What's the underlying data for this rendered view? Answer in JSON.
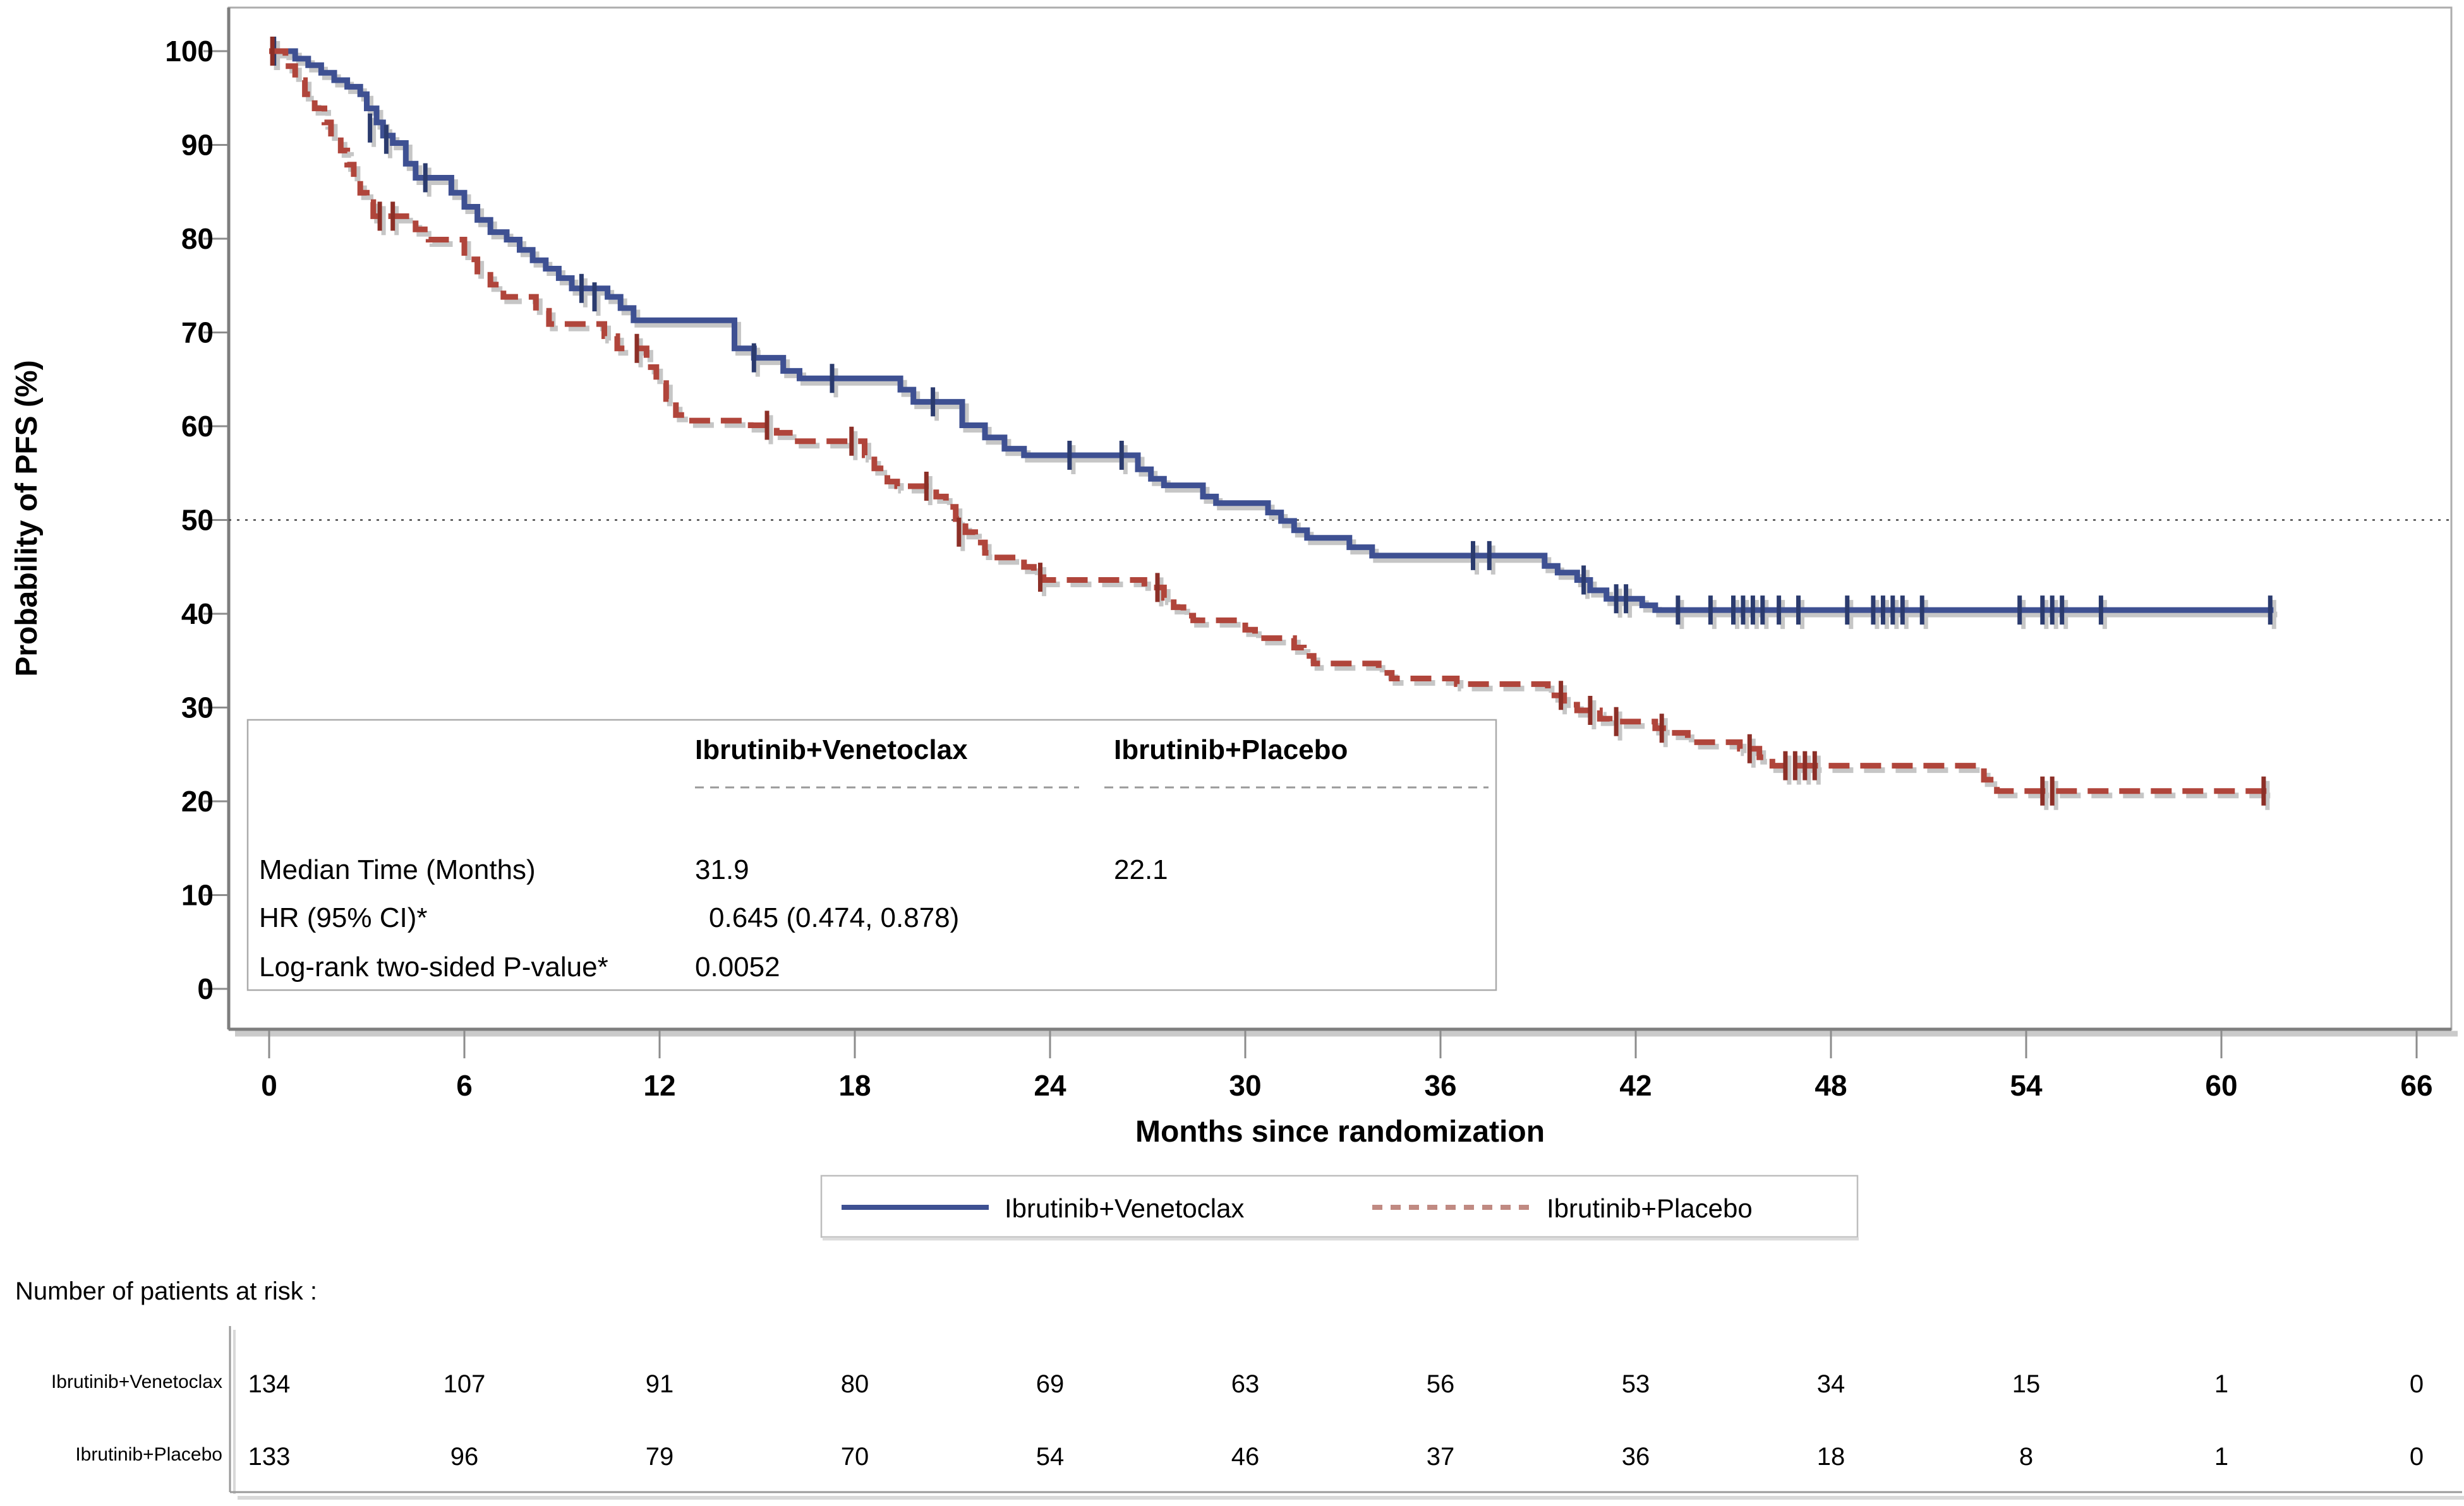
{
  "chart_data": {
    "type": "line",
    "subtype": "kaplan-meier-step",
    "title": "",
    "x_label": "Months since randomization",
    "y_label": "Probability of PFS (%)",
    "x_ticks": [
      0,
      6,
      12,
      18,
      24,
      30,
      36,
      42,
      48,
      54,
      60,
      66
    ],
    "y_ticks": [
      100,
      90,
      80,
      70,
      60,
      50,
      40,
      30,
      20,
      10,
      0
    ],
    "xlim": [
      0,
      67.5
    ],
    "ylim": [
      0,
      104
    ],
    "grid": "off",
    "reference_line_y": 50,
    "shadow_color": "#C6C6C6",
    "series": [
      {
        "id": "ibrutinib-venetoclax",
        "name": "Ibrutinib+Venetoclax",
        "color": "#3E5092",
        "censor_color": "#2B3B6E",
        "line_style": "solid",
        "median_months": 31.9,
        "steps": [
          [
            0,
            100
          ],
          [
            0.8,
            99.2
          ],
          [
            1.2,
            98.5
          ],
          [
            1.6,
            97.7
          ],
          [
            2.0,
            96.9
          ],
          [
            2.4,
            96.2
          ],
          [
            2.8,
            95.4
          ],
          [
            3.0,
            93.9
          ],
          [
            3.3,
            92.4
          ],
          [
            3.5,
            91.0
          ],
          [
            3.8,
            90.2
          ],
          [
            4.2,
            88.0
          ],
          [
            4.5,
            86.5
          ],
          [
            5.6,
            84.9
          ],
          [
            6.0,
            83.4
          ],
          [
            6.4,
            82.0
          ],
          [
            6.8,
            80.7
          ],
          [
            7.3,
            79.9
          ],
          [
            7.7,
            78.8
          ],
          [
            8.1,
            77.7
          ],
          [
            8.5,
            76.8
          ],
          [
            8.9,
            75.8
          ],
          [
            9.3,
            74.7
          ],
          [
            10.4,
            73.8
          ],
          [
            10.8,
            72.6
          ],
          [
            11.2,
            71.3
          ],
          [
            14.3,
            68.3
          ],
          [
            14.9,
            67.3
          ],
          [
            15.8,
            65.9
          ],
          [
            16.3,
            65.1
          ],
          [
            19.4,
            63.9
          ],
          [
            19.8,
            62.6
          ],
          [
            21.3,
            60.1
          ],
          [
            22.0,
            58.8
          ],
          [
            22.6,
            57.6
          ],
          [
            23.2,
            56.9
          ],
          [
            26.7,
            55.4
          ],
          [
            27.1,
            54.4
          ],
          [
            27.5,
            53.7
          ],
          [
            28.7,
            52.5
          ],
          [
            29.1,
            51.8
          ],
          [
            30.7,
            50.8
          ],
          [
            31.1,
            49.9
          ],
          [
            31.5,
            48.9
          ],
          [
            31.9,
            48.1
          ],
          [
            33.2,
            47.1
          ],
          [
            33.9,
            46.2
          ],
          [
            39.2,
            45.1
          ],
          [
            39.6,
            44.4
          ],
          [
            40.2,
            43.6
          ],
          [
            40.6,
            42.5
          ],
          [
            41.1,
            41.6
          ],
          [
            42.2,
            40.9
          ],
          [
            42.6,
            40.4
          ],
          [
            61.6,
            40.4
          ]
        ],
        "censor_marks": [
          [
            0.15,
            100
          ],
          [
            3.1,
            91.8
          ],
          [
            3.6,
            90.6
          ],
          [
            4.8,
            86.5
          ],
          [
            9.6,
            74.7
          ],
          [
            10.0,
            73.8
          ],
          [
            14.9,
            67.3
          ],
          [
            17.3,
            65.1
          ],
          [
            20.4,
            62.6
          ],
          [
            24.6,
            56.9
          ],
          [
            26.2,
            56.9
          ],
          [
            37.0,
            46.2
          ],
          [
            37.5,
            46.2
          ],
          [
            40.4,
            43.6
          ],
          [
            41.4,
            41.6
          ],
          [
            41.7,
            41.6
          ],
          [
            43.3,
            40.4
          ],
          [
            44.3,
            40.4
          ],
          [
            45.0,
            40.4
          ],
          [
            45.3,
            40.4
          ],
          [
            45.6,
            40.4
          ],
          [
            45.9,
            40.4
          ],
          [
            46.4,
            40.4
          ],
          [
            47.0,
            40.4
          ],
          [
            48.5,
            40.4
          ],
          [
            49.3,
            40.4
          ],
          [
            49.6,
            40.4
          ],
          [
            49.9,
            40.4
          ],
          [
            50.2,
            40.4
          ],
          [
            50.8,
            40.4
          ],
          [
            53.8,
            40.4
          ],
          [
            54.5,
            40.4
          ],
          [
            54.8,
            40.4
          ],
          [
            55.1,
            40.4
          ],
          [
            56.3,
            40.4
          ],
          [
            61.5,
            40.4
          ]
        ]
      },
      {
        "id": "ibrutinib-placebo",
        "name": "Ibrutinib+Placebo",
        "color": "#B0453B",
        "censor_color": "#8C2F27",
        "line_style": "dashed",
        "median_months": 22.1,
        "steps": [
          [
            0,
            100
          ],
          [
            0.5,
            98.4
          ],
          [
            0.8,
            96.9
          ],
          [
            1.1,
            95.4
          ],
          [
            1.4,
            93.9
          ],
          [
            1.7,
            92.4
          ],
          [
            1.9,
            90.9
          ],
          [
            2.2,
            89.4
          ],
          [
            2.4,
            87.9
          ],
          [
            2.6,
            86.4
          ],
          [
            2.8,
            84.9
          ],
          [
            3.0,
            83.9
          ],
          [
            3.2,
            82.4
          ],
          [
            4.5,
            81.0
          ],
          [
            4.9,
            79.9
          ],
          [
            6.0,
            77.8
          ],
          [
            6.4,
            76.5
          ],
          [
            6.8,
            75.1
          ],
          [
            7.2,
            73.8
          ],
          [
            8.2,
            72.3
          ],
          [
            8.6,
            70.9
          ],
          [
            10.3,
            69.6
          ],
          [
            10.7,
            68.3
          ],
          [
            11.6,
            66.3
          ],
          [
            11.9,
            64.6
          ],
          [
            12.2,
            62.9
          ],
          [
            12.5,
            61.2
          ],
          [
            12.8,
            60.6
          ],
          [
            14.8,
            60.1
          ],
          [
            15.6,
            59.3
          ],
          [
            16.1,
            58.4
          ],
          [
            18.3,
            56.9
          ],
          [
            18.6,
            55.5
          ],
          [
            19.0,
            54.1
          ],
          [
            19.3,
            53.6
          ],
          [
            20.5,
            52.5
          ],
          [
            20.8,
            51.4
          ],
          [
            21.1,
            50.1
          ],
          [
            21.4,
            48.7
          ],
          [
            21.7,
            47.6
          ],
          [
            22.0,
            46.5
          ],
          [
            22.2,
            46.0
          ],
          [
            23.2,
            45.0
          ],
          [
            23.5,
            43.9
          ],
          [
            23.8,
            43.6
          ],
          [
            26.9,
            42.8
          ],
          [
            27.5,
            41.7
          ],
          [
            27.8,
            40.7
          ],
          [
            28.1,
            39.8
          ],
          [
            28.4,
            39.3
          ],
          [
            30.0,
            38.3
          ],
          [
            30.3,
            37.4
          ],
          [
            31.5,
            36.4
          ],
          [
            31.8,
            35.5
          ],
          [
            32.1,
            34.7
          ],
          [
            34.1,
            33.7
          ],
          [
            34.5,
            33.1
          ],
          [
            36.5,
            32.5
          ],
          [
            39.3,
            31.3
          ],
          [
            39.8,
            30.3
          ],
          [
            40.2,
            29.7
          ],
          [
            40.9,
            28.8
          ],
          [
            41.2,
            28.5
          ],
          [
            42.6,
            27.8
          ],
          [
            43.0,
            27.3
          ],
          [
            43.6,
            26.3
          ],
          [
            45.2,
            25.6
          ],
          [
            45.8,
            24.7
          ],
          [
            46.2,
            23.8
          ],
          [
            52.7,
            22.3
          ],
          [
            53.1,
            21.1
          ],
          [
            61.4,
            21.1
          ]
        ],
        "censor_marks": [
          [
            0.1,
            100
          ],
          [
            3.4,
            82.4
          ],
          [
            3.8,
            82.4
          ],
          [
            11.3,
            68.3
          ],
          [
            15.3,
            60.1
          ],
          [
            17.9,
            58.4
          ],
          [
            20.2,
            53.6
          ],
          [
            21.2,
            48.7
          ],
          [
            23.7,
            43.9
          ],
          [
            27.3,
            42.8
          ],
          [
            39.7,
            31.3
          ],
          [
            40.6,
            29.7
          ],
          [
            41.4,
            28.5
          ],
          [
            42.8,
            27.8
          ],
          [
            45.5,
            25.6
          ],
          [
            46.6,
            23.8
          ],
          [
            46.9,
            23.8
          ],
          [
            47.2,
            23.8
          ],
          [
            47.5,
            23.8
          ],
          [
            54.5,
            21.1
          ],
          [
            54.8,
            21.1
          ],
          [
            61.3,
            21.1
          ]
        ]
      }
    ]
  },
  "stats_box": {
    "columns": [
      "Ibrutinib+Venetoclax",
      "Ibrutinib+Placebo"
    ],
    "rows": [
      {
        "label": "Median Time (Months)",
        "values": [
          "31.9",
          "22.1"
        ]
      },
      {
        "label": "HR (95% CI)*",
        "values": [
          "0.645 (0.474, 0.878)",
          ""
        ]
      },
      {
        "label": "Log-rank two-sided P-value*",
        "values": [
          "0.0052",
          ""
        ]
      }
    ]
  },
  "legend": {
    "items": [
      {
        "label": "Ibrutinib+Venetoclax",
        "color": "#3E5092",
        "style": "solid"
      },
      {
        "label": "Ibrutinib+Placebo",
        "color": "#B0453B",
        "style": "dashed"
      }
    ]
  },
  "at_risk_table": {
    "title": "Number of patients at risk :",
    "rows": [
      {
        "label": "Ibrutinib+Venetoclax",
        "counts": [
          134,
          107,
          91,
          80,
          69,
          63,
          56,
          53,
          34,
          15,
          1,
          0
        ]
      },
      {
        "label": "Ibrutinib+Placebo",
        "counts": [
          133,
          96,
          79,
          70,
          54,
          46,
          37,
          36,
          18,
          8,
          1,
          0
        ]
      }
    ]
  }
}
